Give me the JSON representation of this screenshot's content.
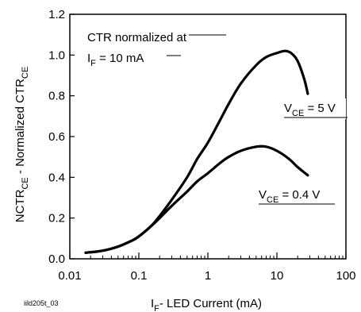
{
  "figure_id": "iild205t_03",
  "chart_data": {
    "type": "line",
    "title": "",
    "xlabel": {
      "main": "I",
      "sub": "F",
      "rest": "- LED Current (mA)"
    },
    "ylabel": {
      "p1": "NCTR",
      "s1": "CE",
      "p2": " - Normalized CTR",
      "s2": "CE"
    },
    "x_scale": "log",
    "xlim": [
      0.01,
      100
    ],
    "ylim": [
      0,
      1.2
    ],
    "x_ticks": [
      {
        "value": 0.01,
        "label": "0.01"
      },
      {
        "value": 0.1,
        "label": "0.1"
      },
      {
        "value": 1,
        "label": "1"
      },
      {
        "value": 10,
        "label": "10"
      },
      {
        "value": 100,
        "label": "100"
      }
    ],
    "y_ticks": [
      {
        "value": 0.0,
        "label": "0.0"
      },
      {
        "value": 0.2,
        "label": "0.2"
      },
      {
        "value": 0.4,
        "label": "0.4"
      },
      {
        "value": 0.6,
        "label": "0.6"
      },
      {
        "value": 0.8,
        "label": "0.8"
      },
      {
        "value": 1.0,
        "label": "1.0"
      },
      {
        "value": 1.2,
        "label": "1.2"
      }
    ],
    "grid": false,
    "note": {
      "line1": "CTR normalized at",
      "line2_main": "I",
      "line2_sub": "F",
      "line2_rest": " = 10 mA"
    },
    "series": [
      {
        "label": {
          "main": "V",
          "sub": "CE",
          "rest": " = 5 V"
        },
        "x": [
          0.017,
          0.03,
          0.05,
          0.08,
          0.1,
          0.15,
          0.2,
          0.3,
          0.5,
          0.7,
          1,
          1.5,
          2,
          3,
          5,
          7,
          10,
          13,
          16,
          20,
          25,
          28
        ],
        "y": [
          0.03,
          0.04,
          0.06,
          0.09,
          0.11,
          0.16,
          0.21,
          0.29,
          0.4,
          0.49,
          0.57,
          0.68,
          0.76,
          0.86,
          0.95,
          0.99,
          1.01,
          1.02,
          1.01,
          0.97,
          0.88,
          0.81
        ]
      },
      {
        "label": {
          "main": "V",
          "sub": "CE",
          "rest": " = 0.4 V"
        },
        "x": [
          0.017,
          0.03,
          0.05,
          0.08,
          0.1,
          0.15,
          0.2,
          0.3,
          0.5,
          0.7,
          1,
          1.5,
          2,
          3,
          5,
          7,
          10,
          15,
          20,
          28
        ],
        "y": [
          0.03,
          0.04,
          0.06,
          0.09,
          0.11,
          0.16,
          0.2,
          0.26,
          0.33,
          0.38,
          0.42,
          0.47,
          0.5,
          0.53,
          0.55,
          0.55,
          0.53,
          0.49,
          0.45,
          0.41
        ]
      }
    ]
  }
}
